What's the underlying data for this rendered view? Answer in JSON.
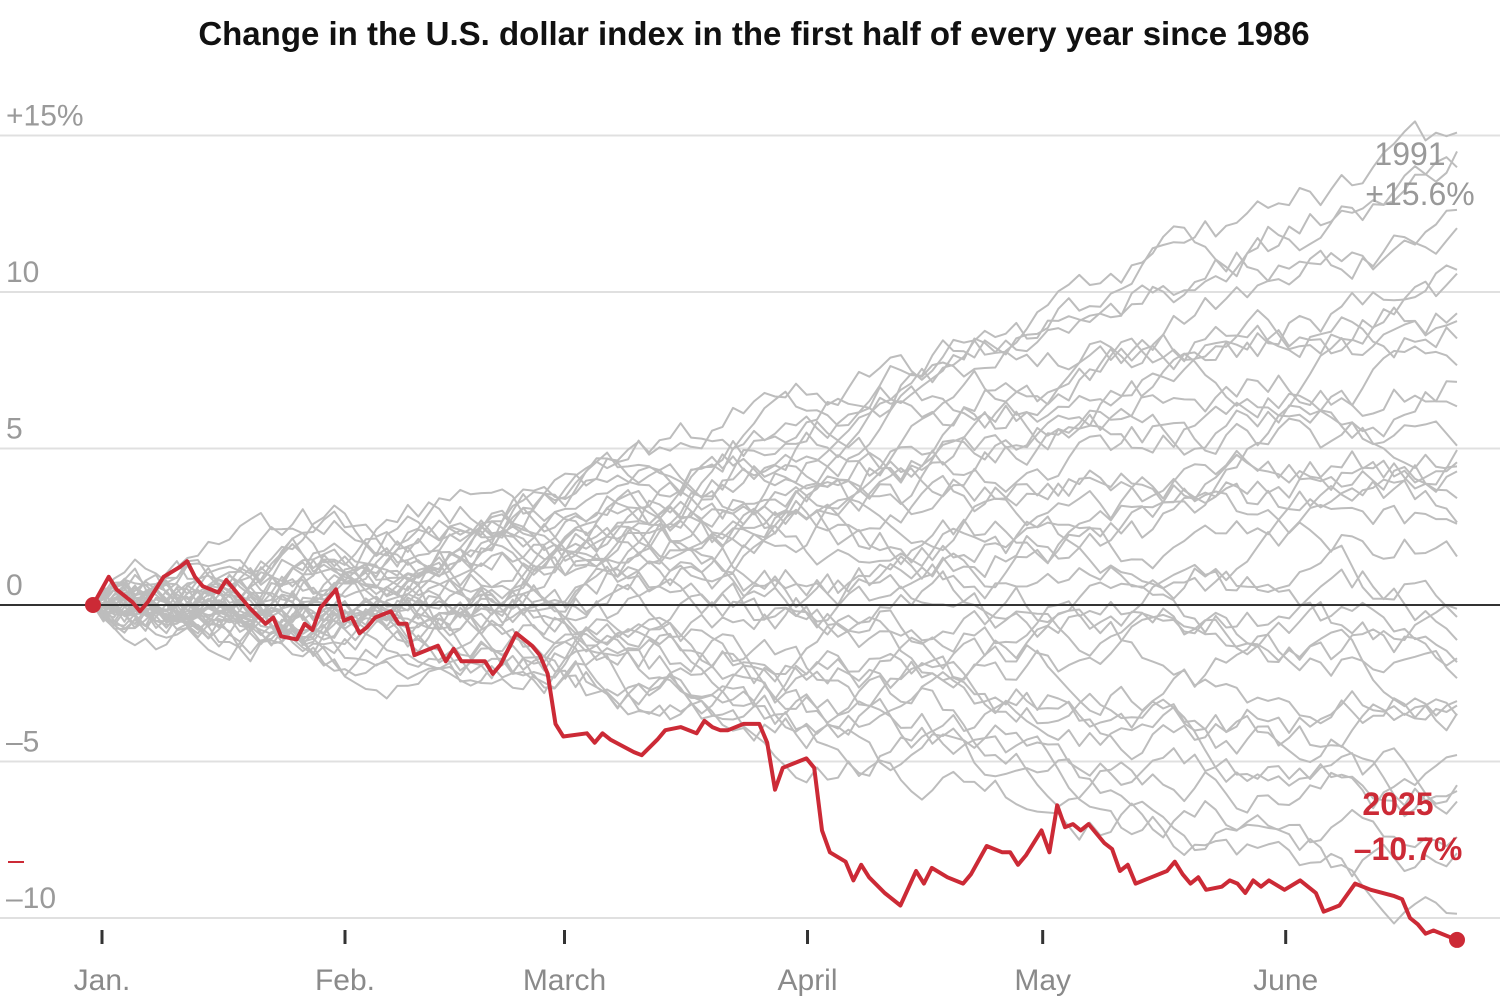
{
  "title": "Change in the U.S. dollar index in the first half of every year since 1986",
  "colors": {
    "highlight": "#cc2a36",
    "history": "#bdbdbd",
    "grid": "#e0e0e0",
    "zero_line": "#333333",
    "tick_text": "#9a9a9a"
  },
  "chart_data": {
    "type": "line",
    "title": "Change in the U.S. dollar index in the first half of every year since 1986",
    "xlabel": "",
    "ylabel": "",
    "x_unit": "day of year",
    "xlim": [
      1,
      181
    ],
    "ylim": [
      -11,
      16
    ],
    "x_ticks": [
      {
        "label": "Jan.",
        "x": 1
      },
      {
        "label": "Feb.",
        "x": 32
      },
      {
        "label": "March",
        "x": 60
      },
      {
        "label": "April",
        "x": 91
      },
      {
        "label": "May",
        "x": 121
      },
      {
        "label": "June",
        "x": 152
      }
    ],
    "y_ticks": [
      {
        "label": "+15%",
        "value": 15
      },
      {
        "label": "10",
        "value": 10
      },
      {
        "label": "5",
        "value": 5
      },
      {
        "label": "0",
        "value": 0
      },
      {
        "label": "–5",
        "value": -5
      },
      {
        "label": "–10",
        "value": -10
      }
    ],
    "grid": true,
    "highlight_series": {
      "name": "2025",
      "final_label": "–10.7%",
      "points": [
        [
          1,
          0
        ],
        [
          3,
          0.9
        ],
        [
          4,
          0.5
        ],
        [
          6,
          0.1
        ],
        [
          7,
          -0.2
        ],
        [
          8,
          0.1
        ],
        [
          10,
          0.9
        ],
        [
          12,
          1.2
        ],
        [
          13,
          1.4
        ],
        [
          14,
          0.9
        ],
        [
          15,
          0.6
        ],
        [
          17,
          0.4
        ],
        [
          18,
          0.8
        ],
        [
          19,
          0.5
        ],
        [
          21,
          -0.1
        ],
        [
          23,
          -0.6
        ],
        [
          24,
          -0.4
        ],
        [
          25,
          -1.0
        ],
        [
          27,
          -1.1
        ],
        [
          28,
          -0.6
        ],
        [
          29,
          -0.8
        ],
        [
          30,
          -0.1
        ],
        [
          31,
          0.2
        ],
        [
          32,
          0.5
        ],
        [
          33,
          -0.5
        ],
        [
          34,
          -0.4
        ],
        [
          35,
          -0.9
        ],
        [
          36,
          -0.7
        ],
        [
          37,
          -0.4
        ],
        [
          39,
          -0.2
        ],
        [
          40,
          -0.6
        ],
        [
          41,
          -0.6
        ],
        [
          42,
          -1.6
        ],
        [
          45,
          -1.3
        ],
        [
          46,
          -1.8
        ],
        [
          47,
          -1.4
        ],
        [
          48,
          -1.8
        ],
        [
          51,
          -1.8
        ],
        [
          52,
          -2.2
        ],
        [
          53,
          -1.9
        ],
        [
          55,
          -0.9
        ],
        [
          56,
          -1.1
        ],
        [
          57,
          -1.3
        ],
        [
          58,
          -1.6
        ],
        [
          59,
          -2.2
        ],
        [
          60,
          -3.8
        ],
        [
          61,
          -4.2
        ],
        [
          64,
          -4.1
        ],
        [
          65,
          -4.4
        ],
        [
          66,
          -4.1
        ],
        [
          67,
          -4.3
        ],
        [
          70,
          -4.7
        ],
        [
          71,
          -4.8
        ],
        [
          73,
          -4.3
        ],
        [
          74,
          -4.0
        ],
        [
          76,
          -3.9
        ],
        [
          78,
          -4.1
        ],
        [
          79,
          -3.7
        ],
        [
          80,
          -3.9
        ],
        [
          81,
          -4.0
        ],
        [
          82,
          -4.0
        ],
        [
          84,
          -3.8
        ],
        [
          86,
          -3.8
        ],
        [
          87,
          -4.4
        ],
        [
          88,
          -5.9
        ],
        [
          89,
          -5.2
        ],
        [
          91,
          -5.0
        ],
        [
          92,
          -4.9
        ],
        [
          93,
          -5.2
        ],
        [
          94,
          -7.2
        ],
        [
          95,
          -7.9
        ],
        [
          97,
          -8.2
        ],
        [
          98,
          -8.8
        ],
        [
          99,
          -8.3
        ],
        [
          100,
          -8.7
        ],
        [
          102,
          -9.2
        ],
        [
          104,
          -9.6
        ],
        [
          106,
          -8.5
        ],
        [
          107,
          -8.9
        ],
        [
          108,
          -8.4
        ],
        [
          110,
          -8.7
        ],
        [
          112,
          -8.9
        ],
        [
          113,
          -8.6
        ],
        [
          115,
          -7.7
        ],
        [
          117,
          -7.9
        ],
        [
          118,
          -7.9
        ],
        [
          119,
          -8.3
        ],
        [
          120,
          -8.0
        ],
        [
          121,
          -7.6
        ],
        [
          122,
          -7.2
        ],
        [
          123,
          -7.9
        ],
        [
          124,
          -6.4
        ],
        [
          125,
          -7.1
        ],
        [
          126,
          -7.0
        ],
        [
          127,
          -7.2
        ],
        [
          128,
          -7.0
        ],
        [
          129,
          -7.3
        ],
        [
          130,
          -7.6
        ],
        [
          131,
          -7.8
        ],
        [
          132,
          -8.5
        ],
        [
          133,
          -8.3
        ],
        [
          134,
          -8.9
        ],
        [
          136,
          -8.7
        ],
        [
          138,
          -8.5
        ],
        [
          139,
          -8.2
        ],
        [
          140,
          -8.6
        ],
        [
          141,
          -8.9
        ],
        [
          142,
          -8.7
        ],
        [
          143,
          -9.1
        ],
        [
          145,
          -9.0
        ],
        [
          146,
          -8.8
        ],
        [
          147,
          -8.9
        ],
        [
          148,
          -9.2
        ],
        [
          149,
          -8.8
        ],
        [
          150,
          -9.0
        ],
        [
          151,
          -8.8
        ],
        [
          153,
          -9.1
        ],
        [
          155,
          -8.8
        ],
        [
          157,
          -9.2
        ],
        [
          158,
          -9.8
        ],
        [
          160,
          -9.6
        ],
        [
          162,
          -8.9
        ],
        [
          164,
          -9.1
        ],
        [
          167,
          -9.3
        ],
        [
          168,
          -9.4
        ],
        [
          169,
          -10.0
        ],
        [
          170,
          -10.2
        ],
        [
          171,
          -10.5
        ],
        [
          172,
          -10.4
        ],
        [
          174,
          -10.6
        ],
        [
          175,
          -10.7
        ]
      ]
    },
    "history_annotation": {
      "year": "1991",
      "final_label": "+15.6%"
    },
    "history_series_count": 39,
    "history_series_envelope": "39 gray lines (1986–2024), each starting at 0 in early January; by end of June they range from about –10% to +16%"
  }
}
